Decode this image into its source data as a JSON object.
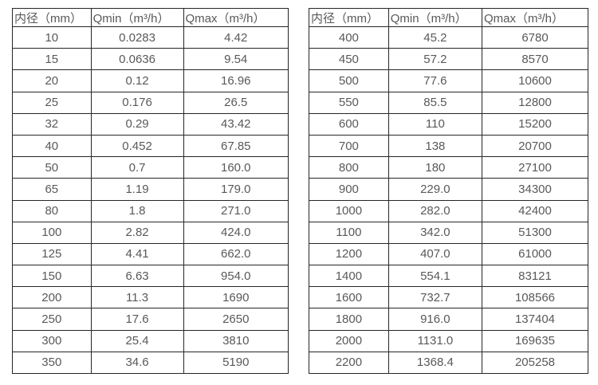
{
  "headers": {
    "diameter": "内径（mm）",
    "qmin": "Qmin（m³/h）",
    "qmax": "Qmax（m³/h）"
  },
  "left_table": {
    "rows": [
      [
        "10",
        "0.0283",
        "4.42"
      ],
      [
        "15",
        "0.0636",
        "9.54"
      ],
      [
        "20",
        "0.12",
        "16.96"
      ],
      [
        "25",
        "0.176",
        "26.5"
      ],
      [
        "32",
        "0.29",
        "43.42"
      ],
      [
        "40",
        "0.452",
        "67.85"
      ],
      [
        "50",
        "0.7",
        "160.0"
      ],
      [
        "65",
        "1.19",
        "179.0"
      ],
      [
        "80",
        "1.8",
        "271.0"
      ],
      [
        "100",
        "2.82",
        "424.0"
      ],
      [
        "125",
        "4.41",
        "662.0"
      ],
      [
        "150",
        "6.63",
        "954.0"
      ],
      [
        "200",
        "11.3",
        "1690"
      ],
      [
        "250",
        "17.6",
        "2650"
      ],
      [
        "300",
        "25.4",
        "3810"
      ],
      [
        "350",
        "34.6",
        "5190"
      ]
    ]
  },
  "right_table": {
    "rows": [
      [
        "400",
        "45.2",
        "6780"
      ],
      [
        "450",
        "57.2",
        "8570"
      ],
      [
        "500",
        "77.6",
        "10600"
      ],
      [
        "550",
        "85.5",
        "12800"
      ],
      [
        "600",
        "110",
        "15200"
      ],
      [
        "700",
        "138",
        "20700"
      ],
      [
        "800",
        "180",
        "27100"
      ],
      [
        "900",
        "229.0",
        "34300"
      ],
      [
        "1000",
        "282.0",
        "42400"
      ],
      [
        "1100",
        "342.0",
        "51300"
      ],
      [
        "1200",
        "407.0",
        "61000"
      ],
      [
        "1400",
        "554.1",
        "83121"
      ],
      [
        "1600",
        "732.7",
        "108566"
      ],
      [
        "1800",
        "916.0",
        "137404"
      ],
      [
        "2000",
        "1131.0",
        "169635"
      ],
      [
        "2200",
        "1368.4",
        "205258"
      ]
    ]
  },
  "colors": {
    "border": "#262626",
    "text": "#595959",
    "background": "#ffffff"
  }
}
